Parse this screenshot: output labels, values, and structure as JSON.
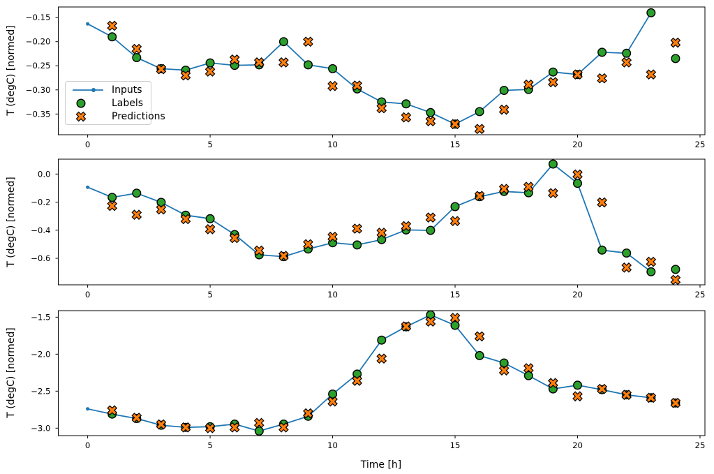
{
  "legend": {
    "items": [
      "Inputs",
      "Labels",
      "Predictions"
    ]
  },
  "chart_data": {
    "type": "line",
    "title": "",
    "xlabel": "Time [h]",
    "grid": false,
    "legend_position": "center-left of top panel",
    "x_inputs": [
      0,
      1,
      2,
      3,
      4,
      5,
      6,
      7,
      8,
      9,
      10,
      11,
      12,
      13,
      14,
      15,
      16,
      17,
      18,
      19,
      20,
      21,
      22,
      23
    ],
    "x_labels_predictions": [
      1,
      2,
      3,
      4,
      5,
      6,
      7,
      8,
      9,
      10,
      11,
      12,
      13,
      14,
      15,
      16,
      17,
      18,
      19,
      20,
      21,
      22,
      23,
      24
    ],
    "xlim": [
      -1.2,
      25.2
    ],
    "xticks": {
      "values": [
        0,
        5,
        10,
        15,
        20,
        25
      ],
      "labels": [
        "0",
        "5",
        "10",
        "15",
        "20",
        "25"
      ]
    },
    "colors": {
      "inputs": "#1f77b4",
      "labels": "#2ca02c",
      "predictions": "#ff7f0e",
      "marker_edge": "#000000",
      "spine": "#000000"
    },
    "panels": [
      {
        "ylabel": "T (degC) [normed]",
        "ylim": [
          -0.393,
          -0.128
        ],
        "yticks": {
          "values": [
            -0.15,
            -0.2,
            -0.25,
            -0.3,
            -0.35
          ],
          "labels": [
            "−0.15",
            "−0.20",
            "−0.25",
            "−0.30",
            "−0.35"
          ]
        },
        "series": {
          "inputs": [
            -0.163,
            -0.19,
            -0.233,
            -0.256,
            -0.259,
            -0.244,
            -0.249,
            -0.248,
            -0.2,
            -0.248,
            -0.256,
            -0.298,
            -0.325,
            -0.329,
            -0.347,
            -0.371,
            -0.345,
            -0.301,
            -0.299,
            -0.263,
            -0.268,
            -0.222,
            -0.224,
            -0.14
          ],
          "labels": [
            -0.19,
            -0.233,
            -0.256,
            -0.259,
            -0.244,
            -0.249,
            -0.248,
            -0.2,
            -0.248,
            -0.256,
            -0.298,
            -0.325,
            -0.329,
            -0.347,
            -0.371,
            -0.345,
            -0.301,
            -0.299,
            -0.263,
            -0.268,
            -0.222,
            -0.224,
            -0.14,
            -0.235
          ],
          "predictions": [
            -0.167,
            -0.215,
            -0.257,
            -0.27,
            -0.262,
            -0.237,
            -0.243,
            -0.243,
            -0.2,
            -0.292,
            -0.291,
            -0.338,
            -0.357,
            -0.365,
            -0.371,
            -0.381,
            -0.341,
            -0.289,
            -0.284,
            -0.268,
            -0.276,
            -0.243,
            -0.268,
            -0.202
          ]
        }
      },
      {
        "ylabel": "T (degC) [normed]",
        "ylim": [
          -0.789,
          0.106
        ],
        "yticks": {
          "values": [
            0.0,
            -0.2,
            -0.4,
            -0.6
          ],
          "labels": [
            "0.0",
            "−0.2",
            "−0.4",
            "−0.6"
          ]
        },
        "series": {
          "inputs": [
            -0.094,
            -0.166,
            -0.136,
            -0.202,
            -0.293,
            -0.318,
            -0.431,
            -0.575,
            -0.588,
            -0.534,
            -0.489,
            -0.505,
            -0.467,
            -0.398,
            -0.401,
            -0.232,
            -0.161,
            -0.124,
            -0.133,
            0.071,
            -0.066,
            -0.542,
            -0.563,
            -0.696
          ],
          "labels": [
            -0.166,
            -0.136,
            -0.202,
            -0.293,
            -0.318,
            -0.431,
            -0.575,
            -0.588,
            -0.534,
            -0.489,
            -0.505,
            -0.467,
            -0.398,
            -0.401,
            -0.232,
            -0.161,
            -0.124,
            -0.133,
            0.071,
            -0.066,
            -0.542,
            -0.563,
            -0.696,
            -0.679
          ],
          "predictions": [
            -0.227,
            -0.29,
            -0.252,
            -0.321,
            -0.393,
            -0.456,
            -0.545,
            -0.583,
            -0.5,
            -0.447,
            -0.389,
            -0.418,
            -0.371,
            -0.31,
            -0.335,
            -0.156,
            -0.106,
            -0.091,
            -0.136,
            -0.003,
            -0.202,
            -0.666,
            -0.625,
            -0.754
          ]
        }
      },
      {
        "ylabel": "T (degC) [normed]",
        "ylim": [
          -3.101,
          -1.412
        ],
        "yticks": {
          "values": [
            -1.5,
            -2.0,
            -2.5,
            -3.0
          ],
          "labels": [
            "−1.5",
            "−2.0",
            "−2.5",
            "−3.0"
          ]
        },
        "series": {
          "inputs": [
            -2.74,
            -2.81,
            -2.87,
            -2.96,
            -2.99,
            -2.98,
            -2.945,
            -3.04,
            -2.945,
            -2.84,
            -2.54,
            -2.27,
            -1.81,
            -1.63,
            -1.47,
            -1.61,
            -2.02,
            -2.12,
            -2.29,
            -2.47,
            -2.42,
            -2.48,
            -2.55,
            -2.59
          ],
          "labels": [
            -2.81,
            -2.87,
            -2.96,
            -2.99,
            -2.98,
            -2.945,
            -3.04,
            -2.945,
            -2.84,
            -2.54,
            -2.27,
            -1.81,
            -1.63,
            -1.47,
            -1.61,
            -2.02,
            -2.12,
            -2.29,
            -2.47,
            -2.42,
            -2.48,
            -2.55,
            -2.59,
            -2.66
          ],
          "predictions": [
            -2.76,
            -2.86,
            -2.95,
            -2.99,
            -3.0,
            -2.99,
            -2.93,
            -2.99,
            -2.8,
            -2.64,
            -2.36,
            -2.06,
            -1.625,
            -1.56,
            -1.51,
            -1.76,
            -2.22,
            -2.19,
            -2.39,
            -2.57,
            -2.47,
            -2.55,
            -2.59,
            -2.66
          ]
        }
      }
    ]
  }
}
